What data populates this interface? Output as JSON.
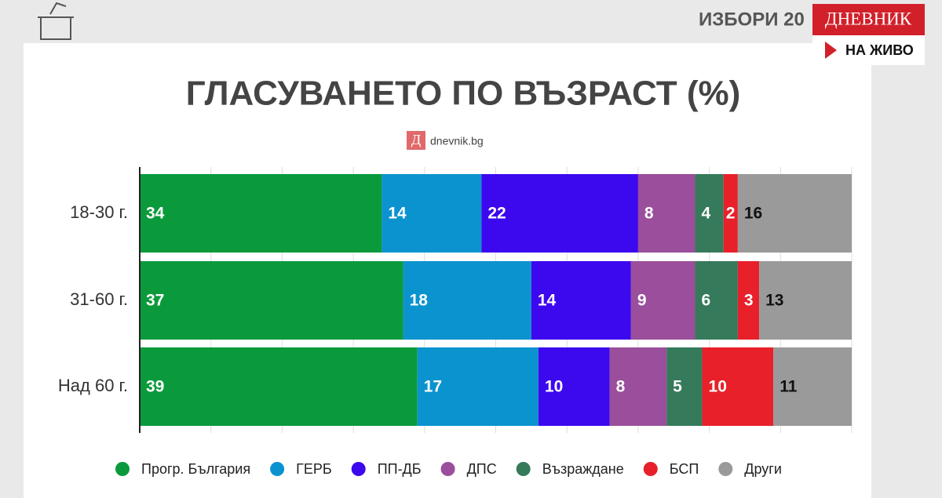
{
  "header": {
    "title": "ИЗБОРИ 20",
    "logo": "ДНЕВНИК",
    "live": "НА ЖИВО"
  },
  "chart_data": {
    "type": "stacked-bar-horizontal",
    "title": "ГЛАСУВАНЕТО ПО ВЪЗРАСТ (%)",
    "source_icon": "Д",
    "source": "dnevnik.bg",
    "categories": [
      "18-30 г.",
      "31-60 г.",
      "Над 60 г."
    ],
    "xlim": [
      0,
      100
    ],
    "xticks": [
      0,
      10,
      20,
      30,
      40,
      50,
      60,
      70,
      80,
      90,
      100
    ],
    "grid": true,
    "series": [
      {
        "name": "Прогр. България",
        "color": "#0a9a3c",
        "values": [
          34,
          37,
          39
        ]
      },
      {
        "name": "ГЕРБ",
        "color": "#0b93cf",
        "values": [
          14,
          18,
          17
        ]
      },
      {
        "name": "ПП-ДБ",
        "color": "#3c08ee",
        "values": [
          22,
          14,
          10
        ]
      },
      {
        "name": "ДПС",
        "color": "#9a4e9b",
        "values": [
          8,
          9,
          8
        ]
      },
      {
        "name": "Възраждане",
        "color": "#357a5b",
        "values": [
          4,
          6,
          5
        ]
      },
      {
        "name": "БСП",
        "color": "#e8202a",
        "values": [
          2,
          3,
          10
        ]
      },
      {
        "name": "Други",
        "color": "#9a9a9a",
        "values": [
          16,
          13,
          11
        ]
      }
    ]
  }
}
